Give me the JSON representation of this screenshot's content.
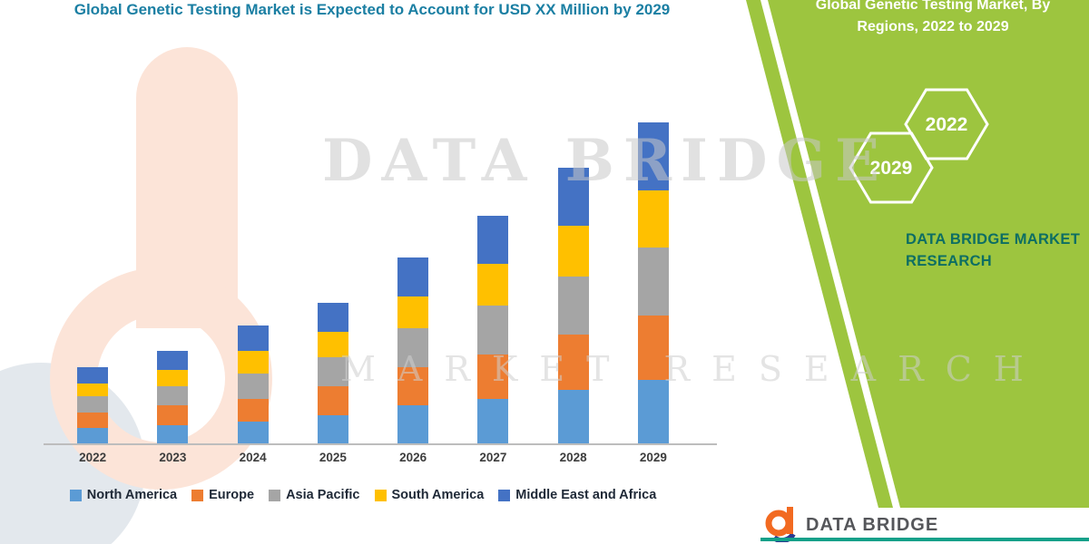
{
  "title": "Global Genetic Testing Market is Expected to Account for USD XX Million by 2029",
  "watermark": {
    "line1": "DATA BRIDGE",
    "line2": "MARKET RESEARCH"
  },
  "side_panel": {
    "heading": "Global Genetic Testing Market, By Regions, 2022 to 2029",
    "hexagons": [
      "2029",
      "2022"
    ],
    "brand": "DATA BRIDGE MARKET RESEARCH",
    "panel_color": "#9dc53f",
    "brand_color": "#0d6e63"
  },
  "footer": {
    "logo_text": "DATA BRIDGE"
  },
  "chart_data": {
    "type": "bar",
    "stacked": true,
    "title": "Global Genetic Testing Market is Expected to Account for USD XX Million by 2029",
    "categories": [
      "2022",
      "2023",
      "2024",
      "2025",
      "2026",
      "2027",
      "2028",
      "2029"
    ],
    "series": [
      {
        "name": "North America",
        "color": "#5B9BD5",
        "values": [
          5,
          6,
          7,
          9,
          12,
          14,
          17,
          20
        ]
      },
      {
        "name": "Europe",
        "color": "#ED7D31",
        "values": [
          5,
          6,
          7,
          9,
          12,
          14,
          17,
          20
        ]
      },
      {
        "name": "Asia Pacific",
        "color": "#A5A5A5",
        "values": [
          5,
          6,
          8,
          9,
          12,
          15,
          18,
          21
        ]
      },
      {
        "name": "South America",
        "color": "#FFC000",
        "values": [
          4,
          5,
          7,
          8,
          10,
          13,
          16,
          18
        ]
      },
      {
        "name": "Middle East and Africa",
        "color": "#4472C4",
        "values": [
          5,
          6,
          8,
          9,
          12,
          15,
          18,
          21
        ]
      }
    ],
    "xlabel": "",
    "ylabel": "",
    "ylim": [
      0,
      100
    ],
    "y_axis_visible": false,
    "legend_position": "bottom"
  }
}
